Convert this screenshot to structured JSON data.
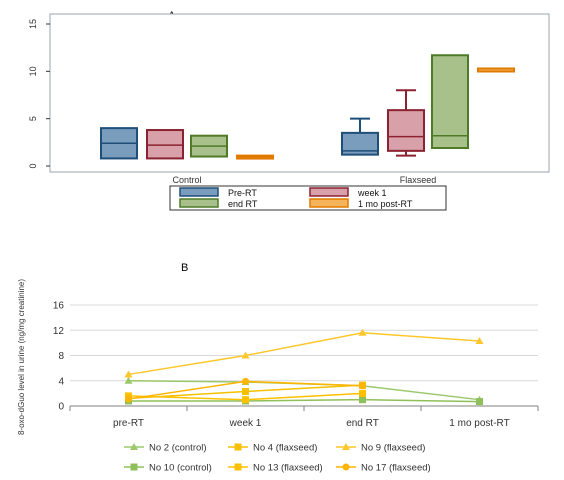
{
  "panel_a": {
    "label": "A",
    "chart_data": {
      "type": "boxplot",
      "groups": [
        "Control",
        "Flaxseed"
      ],
      "y_ticks": [
        "0",
        "5",
        "10",
        "15"
      ],
      "ylim": [
        0,
        15.5
      ],
      "legend": [
        "Pre-RT",
        "week 1",
        "end RT",
        "1 mo post-RT"
      ],
      "colors": {
        "Pre-RT": {
          "fill": "#7a9cbd",
          "stroke": "#1f4e79"
        },
        "week 1": {
          "fill": "#d8a0a8",
          "stroke": "#8b2232"
        },
        "end RT": {
          "fill": "#a8c08a",
          "stroke": "#4f7a28"
        },
        "1 mo post-RT": {
          "fill": "#f5b45a",
          "stroke": "#e07b00"
        }
      },
      "boxes": [
        {
          "group": "Control",
          "series": "Pre-RT",
          "min": 0.8,
          "q1": 0.8,
          "median": 2.4,
          "q3": 4.0,
          "max": 4.0
        },
        {
          "group": "Control",
          "series": "week 1",
          "min": 0.8,
          "q1": 0.8,
          "median": 2.2,
          "q3": 3.8,
          "max": 3.8
        },
        {
          "group": "Control",
          "series": "end RT",
          "min": 1.0,
          "q1": 1.0,
          "median": 2.1,
          "q3": 3.2,
          "max": 3.2
        },
        {
          "group": "Control",
          "series": "1 mo post-RT",
          "min": 0.8,
          "q1": 0.8,
          "median": 0.95,
          "q3": 1.1,
          "max": 1.1
        },
        {
          "group": "Flaxseed",
          "series": "Pre-RT",
          "min": 1.2,
          "q1": 1.2,
          "median": 1.6,
          "q3": 3.5,
          "max": 5.0
        },
        {
          "group": "Flaxseed",
          "series": "week 1",
          "min": 1.1,
          "q1": 1.6,
          "median": 3.1,
          "q3": 5.9,
          "max": 8.0
        },
        {
          "group": "Flaxseed",
          "series": "end RT",
          "min": 1.9,
          "q1": 1.9,
          "median": 3.2,
          "q3": 11.7,
          "max": 11.7
        },
        {
          "group": "Flaxseed",
          "series": "1 mo post-RT",
          "min": 10.3,
          "q1": 10.3,
          "median": 10.3,
          "q3": 10.3,
          "max": 10.3
        }
      ]
    }
  },
  "panel_b": {
    "label": "B",
    "chart_data": {
      "type": "line",
      "categories": [
        "pre-RT",
        "week 1",
        "end RT",
        "1 mo post-RT"
      ],
      "y_ticks": [
        "0",
        "4",
        "8",
        "12",
        "16"
      ],
      "ylim": [
        0,
        16
      ],
      "ylabel": "8-oxo-dGuo level in urine (ng/mg creatinine)",
      "series": [
        {
          "name": "No 2 (control)",
          "marker": "triangle",
          "color": "#9bc86a",
          "values": [
            4.0,
            3.8,
            3.2,
            1.0
          ]
        },
        {
          "name": "No 4 (flaxseed)",
          "marker": "square",
          "color": "#f5c000",
          "values": [
            1.2,
            2.3,
            3.3,
            null
          ]
        },
        {
          "name": "No 9 (flaxseed)",
          "marker": "triangle",
          "color": "#ffc72c",
          "values": [
            5.0,
            8.0,
            11.6,
            10.3
          ]
        },
        {
          "name": "No 10 (control)",
          "marker": "square",
          "color": "#8fbf5a",
          "values": [
            0.8,
            0.8,
            1.0,
            0.7
          ]
        },
        {
          "name": "No 13 (flaxseed)",
          "marker": "square",
          "color": "#ffc000",
          "values": [
            1.6,
            1.0,
            2.0,
            null
          ]
        },
        {
          "name": "No 17 (flaxseed)",
          "marker": "circle",
          "color": "#ffb400",
          "values": [
            1.1,
            3.9,
            3.2,
            null
          ]
        }
      ]
    }
  }
}
